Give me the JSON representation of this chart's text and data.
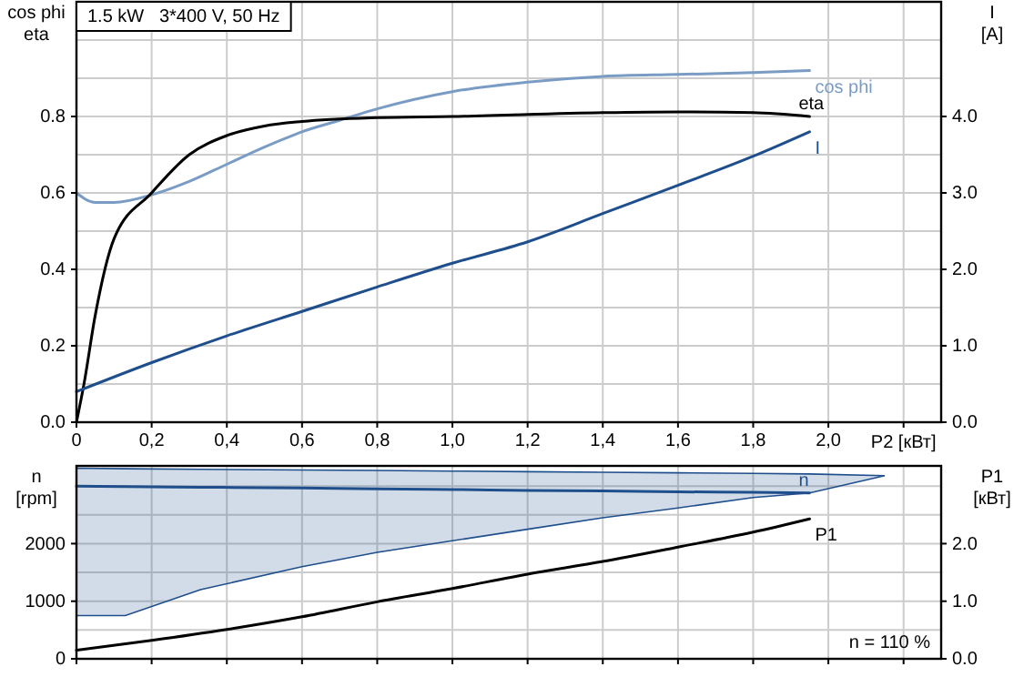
{
  "chart_data": [
    {
      "type": "line",
      "title": "1.5 kW   3*400 V, 50 Hz",
      "xlabel": "P2 [кВт]",
      "ylabel": "cos phi\neta",
      "y2label": "I\n[A]",
      "grid": true,
      "xlim": [
        0,
        2.3
      ],
      "xticks": [
        0,
        {
          "value": 0.2,
          "label": "0,2"
        },
        {
          "value": 0.4,
          "label": "0,4"
        },
        {
          "value": 0.6,
          "label": "0,6"
        },
        {
          "value": 0.8,
          "label": "0,8"
        },
        {
          "value": 1.0,
          "label": "1,0"
        },
        {
          "value": 1.2,
          "label": "1,2"
        },
        {
          "value": 1.4,
          "label": "1,4"
        },
        {
          "value": 1.6,
          "label": "1,6"
        },
        {
          "value": 1.8,
          "label": "1,8"
        },
        {
          "value": 2.0,
          "label": "2,0"
        },
        {
          "value": 2.2,
          "label": null
        }
      ],
      "ylim": [
        0,
        1.1
      ],
      "yticks": [
        {
          "value": 0,
          "label": "0.0"
        },
        {
          "value": 0.1,
          "label": null
        },
        {
          "value": 0.2,
          "label": "0.2"
        },
        {
          "value": 0.3,
          "label": null
        },
        {
          "value": 0.4,
          "label": "0.4"
        },
        {
          "value": 0.5,
          "label": null
        },
        {
          "value": 0.6,
          "label": "0.6"
        },
        {
          "value": 0.7,
          "label": null
        },
        {
          "value": 0.8,
          "label": "0.8"
        },
        {
          "value": 0.9,
          "label": null
        },
        {
          "value": 1.0,
          "label": null
        }
      ],
      "y2lim": [
        0,
        5.5
      ],
      "y2ticks": [
        {
          "value": 0,
          "label": "0.0"
        },
        {
          "value": 1,
          "label": "1.0"
        },
        {
          "value": 2,
          "label": "2.0"
        },
        {
          "value": 3,
          "label": "3.0"
        },
        {
          "value": 4,
          "label": "4.0"
        },
        {
          "value": 5,
          "label": null
        }
      ],
      "series": [
        {
          "name": "cos phi",
          "color": "#7a9cc4",
          "x": [
            0,
            0.05,
            0.1,
            0.2,
            0.3,
            0.4,
            0.5,
            0.6,
            0.7,
            0.8,
            1.0,
            1.2,
            1.4,
            1.6,
            1.8,
            1.95
          ],
          "values": [
            0.6,
            0.575,
            0.575,
            0.595,
            0.63,
            0.675,
            0.72,
            0.76,
            0.79,
            0.82,
            0.865,
            0.89,
            0.905,
            0.91,
            0.915,
            0.92
          ]
        },
        {
          "name": "eta",
          "color": "#000000",
          "x": [
            0,
            0.02,
            0.05,
            0.1,
            0.2,
            0.3,
            0.4,
            0.5,
            0.6,
            0.8,
            1.0,
            1.4,
            1.6,
            1.8,
            1.95
          ],
          "values": [
            0,
            0.1,
            0.28,
            0.48,
            0.6,
            0.7,
            0.75,
            0.775,
            0.787,
            0.797,
            0.8,
            0.81,
            0.812,
            0.81,
            0.8
          ]
        },
        {
          "name": "I",
          "color": "#1f4e8c",
          "axis": "y2",
          "x": [
            0,
            0.2,
            0.4,
            0.6,
            0.8,
            1.0,
            1.2,
            1.4,
            1.6,
            1.8,
            1.95
          ],
          "values": [
            0.4,
            0.78,
            1.13,
            1.45,
            1.77,
            2.08,
            2.36,
            2.73,
            3.1,
            3.48,
            3.8
          ]
        }
      ]
    },
    {
      "type": "line",
      "ylabel": "n\n[rpm]",
      "y2label": "P1\n[кВт]",
      "grid": true,
      "tick_labels": "y",
      "xlim": [
        0,
        2.3
      ],
      "xticks": [
        0,
        0.2,
        0.4,
        0.6,
        0.8,
        1.0,
        1.2,
        1.4,
        1.6,
        1.8,
        2.0,
        2.2
      ],
      "ylim": [
        0,
        3350
      ],
      "yticks": [
        0,
        {
          "value": 500,
          "label": null
        },
        1000,
        {
          "value": 1500,
          "label": null
        },
        2000,
        {
          "value": 2500,
          "label": null
        },
        {
          "value": 3000,
          "label": null
        }
      ],
      "y2lim": [
        0,
        3.35
      ],
      "y2ticks": [
        {
          "value": 0,
          "label": "0.0"
        },
        {
          "value": 1,
          "label": "1.0"
        },
        {
          "value": 2,
          "label": "2.0"
        }
      ],
      "annotations": [
        "n = 110 %"
      ],
      "series": [
        {
          "name": "n",
          "color": "#1f4e8c",
          "x": [
            0,
            0.13,
            0.33,
            0.6,
            0.8,
            1.0,
            1.2,
            1.4,
            1.6,
            1.8,
            1.95,
            2.15
          ],
          "values": [
            3000,
            2990,
            2980,
            2965,
            2950,
            2940,
            2925,
            2915,
            2900,
            2890,
            2880,
            null
          ],
          "lower": [
            750,
            750,
            1200,
            1600,
            1850,
            2050,
            2250,
            2450,
            2620,
            2800,
            2880,
            3180
          ],
          "upper": [
            3310,
            3300,
            3290,
            3280,
            3270,
            3260,
            3250,
            3240,
            3230,
            3220,
            3210,
            3180
          ]
        },
        {
          "name": "P1",
          "color": "#000000",
          "axis": "y2",
          "x": [
            0,
            0.2,
            0.4,
            0.6,
            0.8,
            1.0,
            1.2,
            1.4,
            1.6,
            1.8,
            1.95
          ],
          "values": [
            0.15,
            0.32,
            0.51,
            0.73,
            0.99,
            1.22,
            1.47,
            1.69,
            1.94,
            2.2,
            2.43
          ]
        }
      ]
    }
  ]
}
